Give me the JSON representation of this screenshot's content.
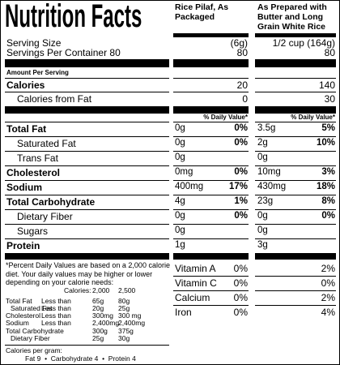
{
  "header": {
    "title": "Nutrition Facts",
    "columns": [
      "Rice Pilaf, As Packaged",
      "As Prepared with Butter and Long Grain White Rice"
    ]
  },
  "serving": {
    "size_label": "Serving Size",
    "size": [
      "(6g)",
      "1/2 cup (164g)"
    ],
    "servings_label": "Servings Per Container 80",
    "servings": [
      "80",
      "80"
    ]
  },
  "amount_per_serving": "Amount Per Serving",
  "calories": {
    "label": "Calories",
    "values": [
      "20",
      "140"
    ]
  },
  "calories_from_fat": {
    "label": "Calories from Fat",
    "values": [
      "0",
      "30"
    ]
  },
  "daily_value_header": [
    "% Daily Value*",
    "% Daily Value*"
  ],
  "nutrients": [
    {
      "label": "Total Fat",
      "packaged": [
        "0g",
        "0%"
      ],
      "prepared": [
        "3.5g",
        "5%"
      ]
    },
    {
      "label": "Saturated Fat",
      "packaged": [
        "0g",
        "0%"
      ],
      "prepared": [
        "2g",
        "10%"
      ]
    },
    {
      "label": "Trans Fat",
      "packaged": [
        "0g"
      ],
      "prepared": [
        "0g"
      ]
    },
    {
      "label": "Cholesterol",
      "packaged": [
        "0mg",
        "0%"
      ],
      "prepared": [
        "10mg",
        "3%"
      ]
    },
    {
      "label": "Sodium",
      "packaged": [
        "400mg",
        "17%"
      ],
      "prepared": [
        "430mg",
        "18%"
      ]
    },
    {
      "label": "Total Carbohydrate",
      "packaged": [
        "4g",
        "1%"
      ],
      "prepared": [
        "23g",
        "8%"
      ]
    },
    {
      "label": "Dietary Fiber",
      "packaged": [
        "0g",
        "0%"
      ],
      "prepared": [
        "0g",
        "0%"
      ]
    },
    {
      "label": "Sugars",
      "packaged": [
        "0g"
      ],
      "prepared": [
        "0g"
      ]
    },
    {
      "label": "Protein",
      "packaged": [
        "1g"
      ],
      "prepared": [
        "3g"
      ]
    }
  ],
  "vitamins": [
    {
      "label": "Vitamin A",
      "values": [
        "0%",
        "2%"
      ]
    },
    {
      "label": "Vitamin C",
      "values": [
        "0%",
        "0%"
      ]
    },
    {
      "label": "Calcium",
      "values": [
        "0%",
        "2%"
      ]
    },
    {
      "label": "Iron",
      "values": [
        "0%",
        "4%"
      ]
    }
  ],
  "footnote": {
    "text": "*Percent Daily Values are based on a 2,000 calorie diet. Your daily values may be higher or lower depending on your calorie needs:",
    "table": {
      "header": [
        "Calories:",
        "2,000",
        "2,500"
      ],
      "rows": [
        [
          "Total Fat",
          "Less than",
          "65g",
          "80g"
        ],
        [
          "Saturated Fat",
          "Less than",
          "20g",
          "25g"
        ],
        [
          "Cholesterol",
          "Less than",
          "300mg",
          "300 mg"
        ],
        [
          "Sodium",
          "Less than",
          "2,400mg",
          "2,400mg"
        ],
        [
          "Total Carbohydrate",
          "300g",
          "375g"
        ],
        [
          "Dietary Fiber",
          "25g",
          "30g"
        ]
      ]
    },
    "calories_per_gram": {
      "label": "Calories per gram:",
      "items": "Fat 9  •  Carbohydrate 4  •  Protein 4"
    }
  }
}
